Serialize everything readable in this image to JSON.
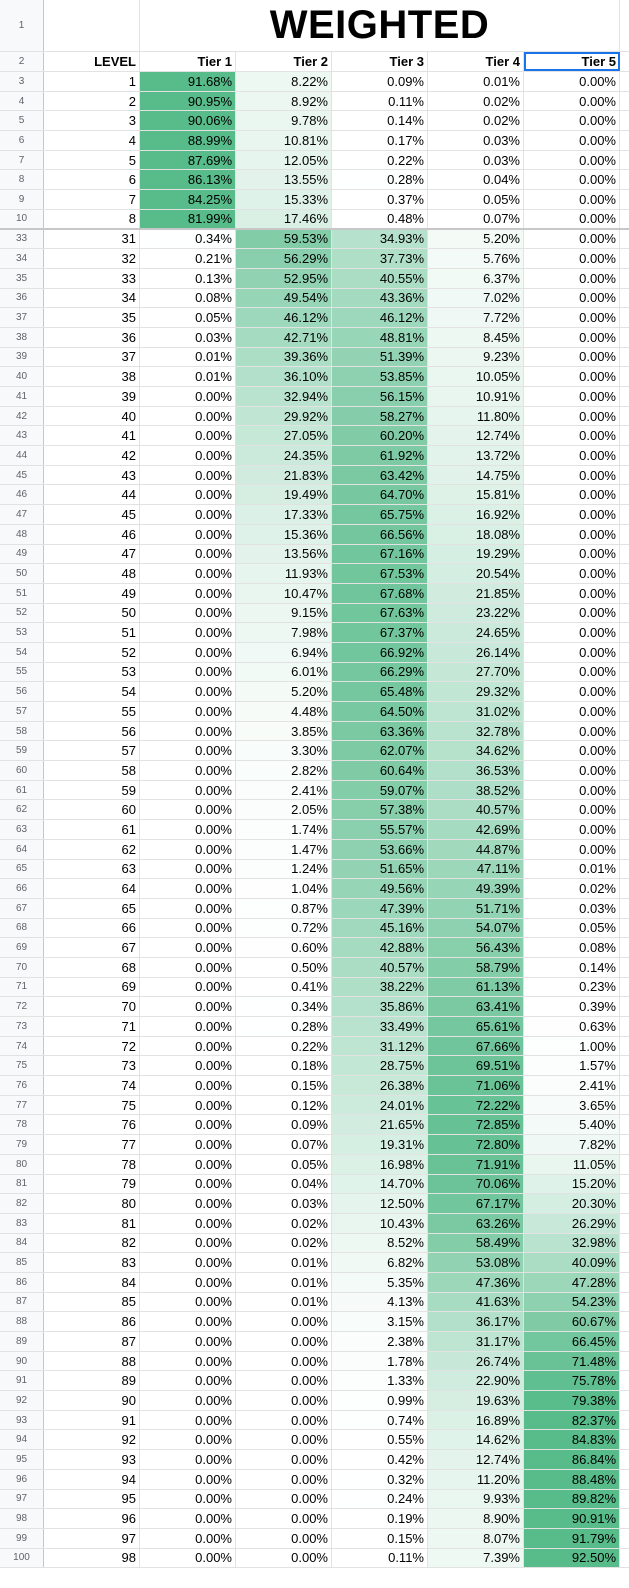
{
  "title": "WEIGHTED",
  "headers": [
    "LEVEL",
    "Tier 1",
    "Tier 2",
    "Tier 3",
    "Tier 4",
    "Tier 5"
  ],
  "header_row_numbers": [
    "1",
    "2"
  ],
  "colors": {
    "scale_low": "#ffffff",
    "scale_high": "#57bb8a",
    "selected_border": "#1a73e8"
  },
  "selected_cell": "Tier 5",
  "rows": [
    {
      "r": "3",
      "level": "1",
      "tiers": [
        "91.68%",
        "8.22%",
        "0.09%",
        "0.01%",
        "0.00%"
      ]
    },
    {
      "r": "4",
      "level": "2",
      "tiers": [
        "90.95%",
        "8.92%",
        "0.11%",
        "0.02%",
        "0.00%"
      ]
    },
    {
      "r": "5",
      "level": "3",
      "tiers": [
        "90.06%",
        "9.78%",
        "0.14%",
        "0.02%",
        "0.00%"
      ]
    },
    {
      "r": "6",
      "level": "4",
      "tiers": [
        "88.99%",
        "10.81%",
        "0.17%",
        "0.03%",
        "0.00%"
      ]
    },
    {
      "r": "7",
      "level": "5",
      "tiers": [
        "87.69%",
        "12.05%",
        "0.22%",
        "0.03%",
        "0.00%"
      ]
    },
    {
      "r": "8",
      "level": "6",
      "tiers": [
        "86.13%",
        "13.55%",
        "0.28%",
        "0.04%",
        "0.00%"
      ]
    },
    {
      "r": "9",
      "level": "7",
      "tiers": [
        "84.25%",
        "15.33%",
        "0.37%",
        "0.05%",
        "0.00%"
      ]
    },
    {
      "r": "10",
      "level": "8",
      "tiers": [
        "81.99%",
        "17.46%",
        "0.48%",
        "0.07%",
        "0.00%"
      ]
    },
    {
      "r": "33",
      "level": "31",
      "tiers": [
        "0.34%",
        "59.53%",
        "34.93%",
        "5.20%",
        "0.00%"
      ]
    },
    {
      "r": "34",
      "level": "32",
      "tiers": [
        "0.21%",
        "56.29%",
        "37.73%",
        "5.76%",
        "0.00%"
      ]
    },
    {
      "r": "35",
      "level": "33",
      "tiers": [
        "0.13%",
        "52.95%",
        "40.55%",
        "6.37%",
        "0.00%"
      ]
    },
    {
      "r": "36",
      "level": "34",
      "tiers": [
        "0.08%",
        "49.54%",
        "43.36%",
        "7.02%",
        "0.00%"
      ]
    },
    {
      "r": "37",
      "level": "35",
      "tiers": [
        "0.05%",
        "46.12%",
        "46.12%",
        "7.72%",
        "0.00%"
      ]
    },
    {
      "r": "38",
      "level": "36",
      "tiers": [
        "0.03%",
        "42.71%",
        "48.81%",
        "8.45%",
        "0.00%"
      ]
    },
    {
      "r": "39",
      "level": "37",
      "tiers": [
        "0.01%",
        "39.36%",
        "51.39%",
        "9.23%",
        "0.00%"
      ]
    },
    {
      "r": "40",
      "level": "38",
      "tiers": [
        "0.01%",
        "36.10%",
        "53.85%",
        "10.05%",
        "0.00%"
      ]
    },
    {
      "r": "41",
      "level": "39",
      "tiers": [
        "0.00%",
        "32.94%",
        "56.15%",
        "10.91%",
        "0.00%"
      ]
    },
    {
      "r": "42",
      "level": "40",
      "tiers": [
        "0.00%",
        "29.92%",
        "58.27%",
        "11.80%",
        "0.00%"
      ]
    },
    {
      "r": "43",
      "level": "41",
      "tiers": [
        "0.00%",
        "27.05%",
        "60.20%",
        "12.74%",
        "0.00%"
      ]
    },
    {
      "r": "44",
      "level": "42",
      "tiers": [
        "0.00%",
        "24.35%",
        "61.92%",
        "13.72%",
        "0.00%"
      ]
    },
    {
      "r": "45",
      "level": "43",
      "tiers": [
        "0.00%",
        "21.83%",
        "63.42%",
        "14.75%",
        "0.00%"
      ]
    },
    {
      "r": "46",
      "level": "44",
      "tiers": [
        "0.00%",
        "19.49%",
        "64.70%",
        "15.81%",
        "0.00%"
      ]
    },
    {
      "r": "47",
      "level": "45",
      "tiers": [
        "0.00%",
        "17.33%",
        "65.75%",
        "16.92%",
        "0.00%"
      ]
    },
    {
      "r": "48",
      "level": "46",
      "tiers": [
        "0.00%",
        "15.36%",
        "66.56%",
        "18.08%",
        "0.00%"
      ]
    },
    {
      "r": "49",
      "level": "47",
      "tiers": [
        "0.00%",
        "13.56%",
        "67.16%",
        "19.29%",
        "0.00%"
      ]
    },
    {
      "r": "50",
      "level": "48",
      "tiers": [
        "0.00%",
        "11.93%",
        "67.53%",
        "20.54%",
        "0.00%"
      ]
    },
    {
      "r": "51",
      "level": "49",
      "tiers": [
        "0.00%",
        "10.47%",
        "67.68%",
        "21.85%",
        "0.00%"
      ]
    },
    {
      "r": "52",
      "level": "50",
      "tiers": [
        "0.00%",
        "9.15%",
        "67.63%",
        "23.22%",
        "0.00%"
      ]
    },
    {
      "r": "53",
      "level": "51",
      "tiers": [
        "0.00%",
        "7.98%",
        "67.37%",
        "24.65%",
        "0.00%"
      ]
    },
    {
      "r": "54",
      "level": "52",
      "tiers": [
        "0.00%",
        "6.94%",
        "66.92%",
        "26.14%",
        "0.00%"
      ]
    },
    {
      "r": "55",
      "level": "53",
      "tiers": [
        "0.00%",
        "6.01%",
        "66.29%",
        "27.70%",
        "0.00%"
      ]
    },
    {
      "r": "56",
      "level": "54",
      "tiers": [
        "0.00%",
        "5.20%",
        "65.48%",
        "29.32%",
        "0.00%"
      ]
    },
    {
      "r": "57",
      "level": "55",
      "tiers": [
        "0.00%",
        "4.48%",
        "64.50%",
        "31.02%",
        "0.00%"
      ]
    },
    {
      "r": "58",
      "level": "56",
      "tiers": [
        "0.00%",
        "3.85%",
        "63.36%",
        "32.78%",
        "0.00%"
      ]
    },
    {
      "r": "59",
      "level": "57",
      "tiers": [
        "0.00%",
        "3.30%",
        "62.07%",
        "34.62%",
        "0.00%"
      ]
    },
    {
      "r": "60",
      "level": "58",
      "tiers": [
        "0.00%",
        "2.82%",
        "60.64%",
        "36.53%",
        "0.00%"
      ]
    },
    {
      "r": "61",
      "level": "59",
      "tiers": [
        "0.00%",
        "2.41%",
        "59.07%",
        "38.52%",
        "0.00%"
      ]
    },
    {
      "r": "62",
      "level": "60",
      "tiers": [
        "0.00%",
        "2.05%",
        "57.38%",
        "40.57%",
        "0.00%"
      ]
    },
    {
      "r": "63",
      "level": "61",
      "tiers": [
        "0.00%",
        "1.74%",
        "55.57%",
        "42.69%",
        "0.00%"
      ]
    },
    {
      "r": "64",
      "level": "62",
      "tiers": [
        "0.00%",
        "1.47%",
        "53.66%",
        "44.87%",
        "0.00%"
      ]
    },
    {
      "r": "65",
      "level": "63",
      "tiers": [
        "0.00%",
        "1.24%",
        "51.65%",
        "47.11%",
        "0.01%"
      ]
    },
    {
      "r": "66",
      "level": "64",
      "tiers": [
        "0.00%",
        "1.04%",
        "49.56%",
        "49.39%",
        "0.02%"
      ]
    },
    {
      "r": "67",
      "level": "65",
      "tiers": [
        "0.00%",
        "0.87%",
        "47.39%",
        "51.71%",
        "0.03%"
      ]
    },
    {
      "r": "68",
      "level": "66",
      "tiers": [
        "0.00%",
        "0.72%",
        "45.16%",
        "54.07%",
        "0.05%"
      ]
    },
    {
      "r": "69",
      "level": "67",
      "tiers": [
        "0.00%",
        "0.60%",
        "42.88%",
        "56.43%",
        "0.08%"
      ]
    },
    {
      "r": "70",
      "level": "68",
      "tiers": [
        "0.00%",
        "0.50%",
        "40.57%",
        "58.79%",
        "0.14%"
      ]
    },
    {
      "r": "71",
      "level": "69",
      "tiers": [
        "0.00%",
        "0.41%",
        "38.22%",
        "61.13%",
        "0.23%"
      ]
    },
    {
      "r": "72",
      "level": "70",
      "tiers": [
        "0.00%",
        "0.34%",
        "35.86%",
        "63.41%",
        "0.39%"
      ]
    },
    {
      "r": "73",
      "level": "71",
      "tiers": [
        "0.00%",
        "0.28%",
        "33.49%",
        "65.61%",
        "0.63%"
      ]
    },
    {
      "r": "74",
      "level": "72",
      "tiers": [
        "0.00%",
        "0.22%",
        "31.12%",
        "67.66%",
        "1.00%"
      ]
    },
    {
      "r": "75",
      "level": "73",
      "tiers": [
        "0.00%",
        "0.18%",
        "28.75%",
        "69.51%",
        "1.57%"
      ]
    },
    {
      "r": "76",
      "level": "74",
      "tiers": [
        "0.00%",
        "0.15%",
        "26.38%",
        "71.06%",
        "2.41%"
      ]
    },
    {
      "r": "77",
      "level": "75",
      "tiers": [
        "0.00%",
        "0.12%",
        "24.01%",
        "72.22%",
        "3.65%"
      ]
    },
    {
      "r": "78",
      "level": "76",
      "tiers": [
        "0.00%",
        "0.09%",
        "21.65%",
        "72.85%",
        "5.40%"
      ]
    },
    {
      "r": "79",
      "level": "77",
      "tiers": [
        "0.00%",
        "0.07%",
        "19.31%",
        "72.80%",
        "7.82%"
      ]
    },
    {
      "r": "80",
      "level": "78",
      "tiers": [
        "0.00%",
        "0.05%",
        "16.98%",
        "71.91%",
        "11.05%"
      ]
    },
    {
      "r": "81",
      "level": "79",
      "tiers": [
        "0.00%",
        "0.04%",
        "14.70%",
        "70.06%",
        "15.20%"
      ]
    },
    {
      "r": "82",
      "level": "80",
      "tiers": [
        "0.00%",
        "0.03%",
        "12.50%",
        "67.17%",
        "20.30%"
      ]
    },
    {
      "r": "83",
      "level": "81",
      "tiers": [
        "0.00%",
        "0.02%",
        "10.43%",
        "63.26%",
        "26.29%"
      ]
    },
    {
      "r": "84",
      "level": "82",
      "tiers": [
        "0.00%",
        "0.02%",
        "8.52%",
        "58.49%",
        "32.98%"
      ]
    },
    {
      "r": "85",
      "level": "83",
      "tiers": [
        "0.00%",
        "0.01%",
        "6.82%",
        "53.08%",
        "40.09%"
      ]
    },
    {
      "r": "86",
      "level": "84",
      "tiers": [
        "0.00%",
        "0.01%",
        "5.35%",
        "47.36%",
        "47.28%"
      ]
    },
    {
      "r": "87",
      "level": "85",
      "tiers": [
        "0.00%",
        "0.01%",
        "4.13%",
        "41.63%",
        "54.23%"
      ]
    },
    {
      "r": "88",
      "level": "86",
      "tiers": [
        "0.00%",
        "0.00%",
        "3.15%",
        "36.17%",
        "60.67%"
      ]
    },
    {
      "r": "89",
      "level": "87",
      "tiers": [
        "0.00%",
        "0.00%",
        "2.38%",
        "31.17%",
        "66.45%"
      ]
    },
    {
      "r": "90",
      "level": "88",
      "tiers": [
        "0.00%",
        "0.00%",
        "1.78%",
        "26.74%",
        "71.48%"
      ]
    },
    {
      "r": "91",
      "level": "89",
      "tiers": [
        "0.00%",
        "0.00%",
        "1.33%",
        "22.90%",
        "75.78%"
      ]
    },
    {
      "r": "92",
      "level": "90",
      "tiers": [
        "0.00%",
        "0.00%",
        "0.99%",
        "19.63%",
        "79.38%"
      ]
    },
    {
      "r": "93",
      "level": "91",
      "tiers": [
        "0.00%",
        "0.00%",
        "0.74%",
        "16.89%",
        "82.37%"
      ]
    },
    {
      "r": "94",
      "level": "92",
      "tiers": [
        "0.00%",
        "0.00%",
        "0.55%",
        "14.62%",
        "84.83%"
      ]
    },
    {
      "r": "95",
      "level": "93",
      "tiers": [
        "0.00%",
        "0.00%",
        "0.42%",
        "12.74%",
        "86.84%"
      ]
    },
    {
      "r": "96",
      "level": "94",
      "tiers": [
        "0.00%",
        "0.00%",
        "0.32%",
        "11.20%",
        "88.48%"
      ]
    },
    {
      "r": "97",
      "level": "95",
      "tiers": [
        "0.00%",
        "0.00%",
        "0.24%",
        "9.93%",
        "89.82%"
      ]
    },
    {
      "r": "98",
      "level": "96",
      "tiers": [
        "0.00%",
        "0.00%",
        "0.19%",
        "8.90%",
        "90.91%"
      ]
    },
    {
      "r": "99",
      "level": "97",
      "tiers": [
        "0.00%",
        "0.00%",
        "0.15%",
        "8.07%",
        "91.79%"
      ]
    },
    {
      "r": "100",
      "level": "98",
      "tiers": [
        "0.00%",
        "0.00%",
        "0.11%",
        "7.39%",
        "92.50%"
      ]
    }
  ]
}
